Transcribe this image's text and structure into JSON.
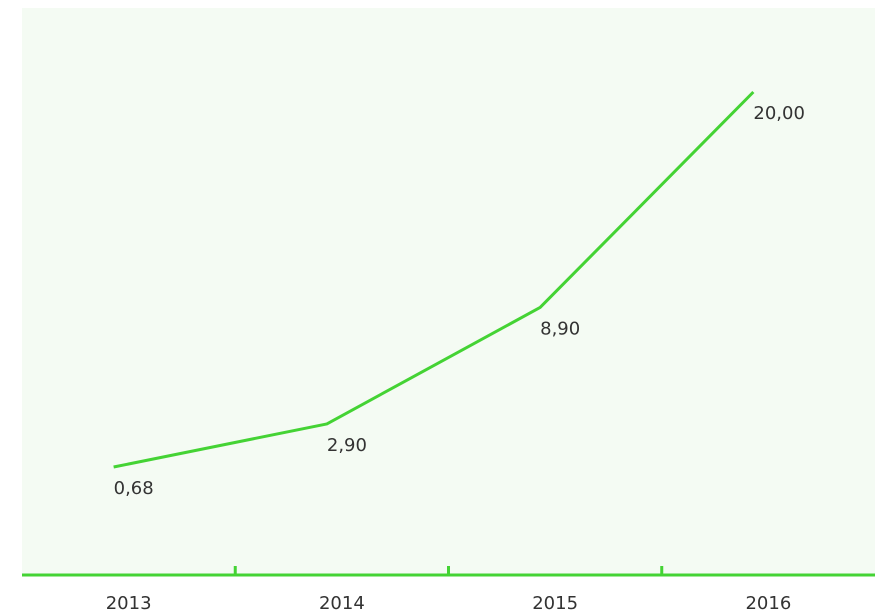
{
  "chart_data": {
    "type": "line",
    "categories": [
      "2013",
      "2014",
      "2015",
      "2016"
    ],
    "values": [
      0.68,
      2.9,
      8.9,
      20.0
    ],
    "value_labels": [
      "0,68",
      "2,90",
      "8,90",
      "20,00"
    ],
    "color": "#44d334"
  }
}
